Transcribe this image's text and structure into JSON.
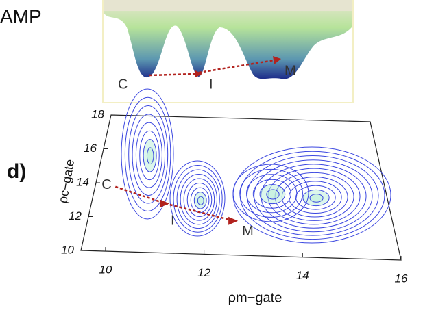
{
  "header": {
    "text": "AMP"
  },
  "landscape_labels": [
    "C",
    "I",
    "M"
  ],
  "chart_data": {
    "type": "contour",
    "panel_label": "d)",
    "x_label": "ρm−gate",
    "y_label": "ρc−gate",
    "xlim": [
      9.5,
      16
    ],
    "ylim": [
      10,
      18
    ],
    "xticks": [
      10,
      12,
      14,
      16
    ],
    "yticks": [
      10,
      12,
      14,
      16,
      18
    ],
    "points": {
      "labels": [
        "C",
        "I",
        "M"
      ],
      "x": [
        9.95,
        11.1,
        12.6
      ],
      "y": [
        13.8,
        12.9,
        12.0
      ]
    },
    "arrow_color": "#b2221e",
    "contour_color": "#3a46e0"
  }
}
